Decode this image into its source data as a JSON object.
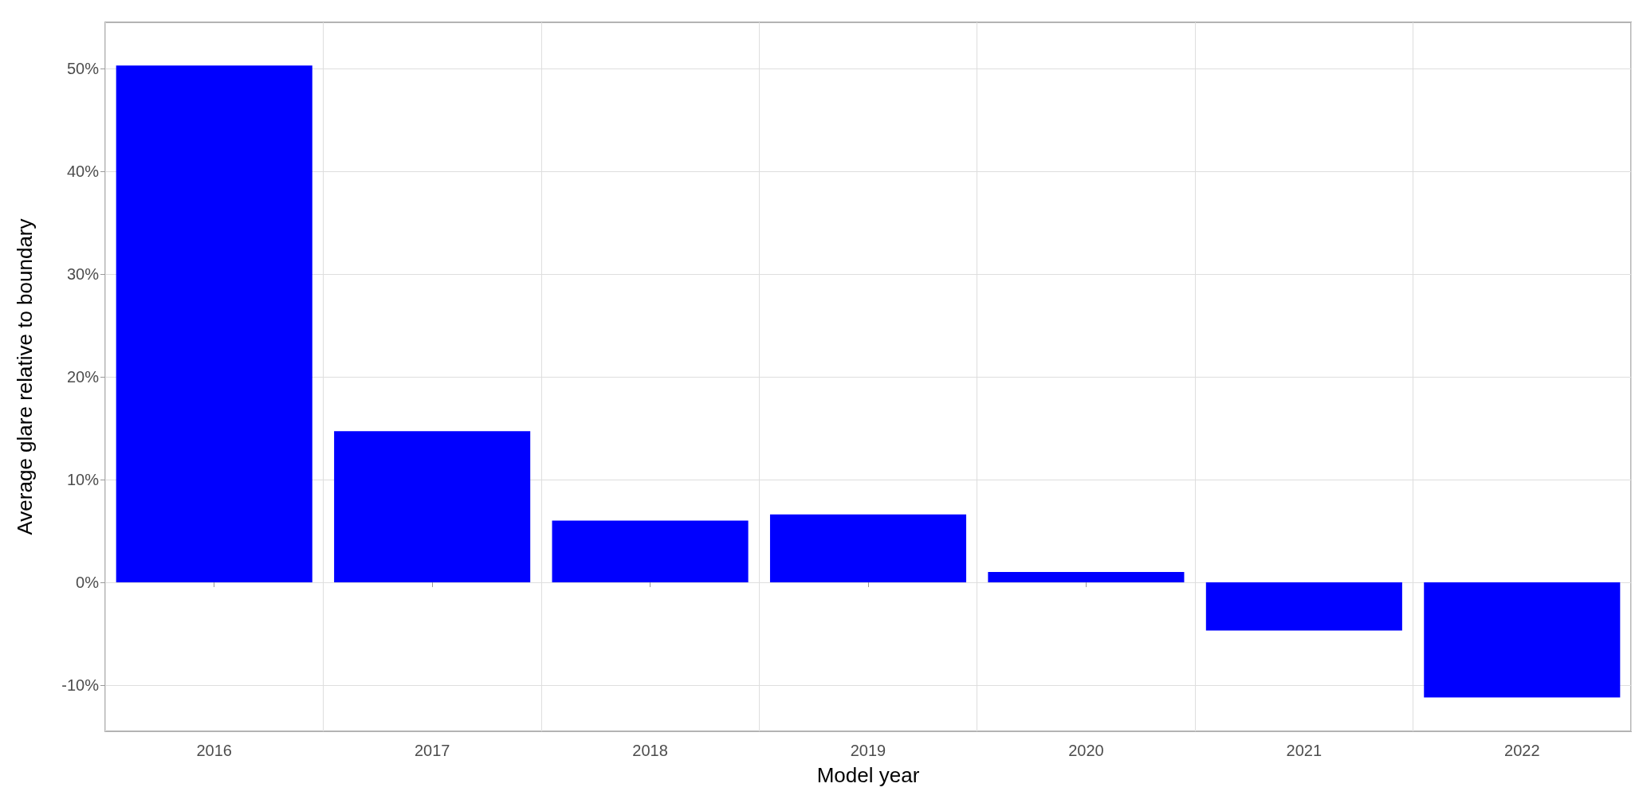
{
  "chart_data": {
    "type": "bar",
    "xlabel": "Model year",
    "ylabel": "Average glare relative to boundary",
    "categories": [
      "2016",
      "2017",
      "2018",
      "2019",
      "2020",
      "2021",
      "2022"
    ],
    "values": [
      50.3,
      14.7,
      6.0,
      6.6,
      1.0,
      -4.7,
      -11.2
    ],
    "color": "#0000ff",
    "ylim": [
      -14.5,
      54.5
    ],
    "yticks": [
      {
        "value": -10,
        "label": "-10%"
      },
      {
        "value": 0,
        "label": "0%"
      },
      {
        "value": 10,
        "label": "10%"
      },
      {
        "value": 20,
        "label": "20%"
      },
      {
        "value": 30,
        "label": "30%"
      },
      {
        "value": 40,
        "label": "40%"
      },
      {
        "value": 50,
        "label": "50%"
      }
    ],
    "grid": true
  }
}
